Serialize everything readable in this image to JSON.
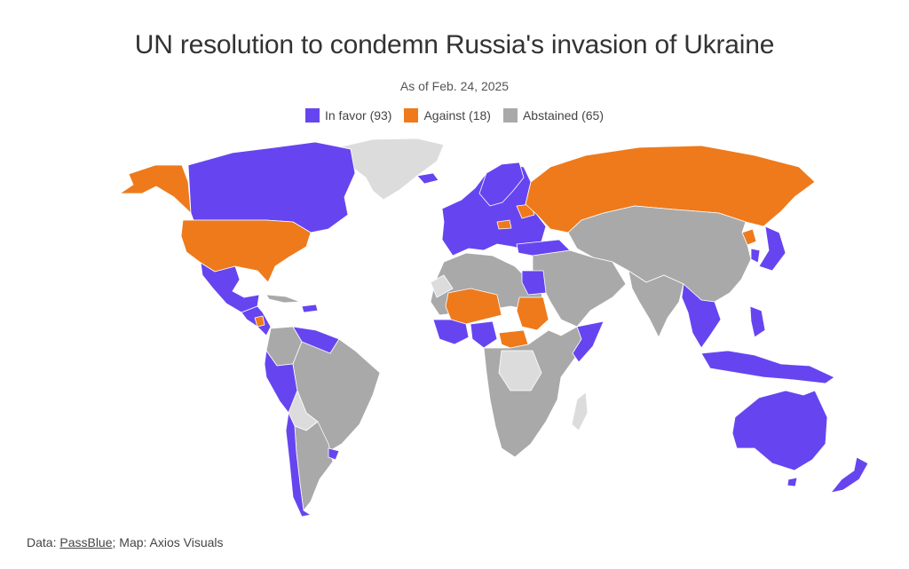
{
  "header": {
    "title": "UN resolution to condemn Russia's invasion of Ukraine",
    "subtitle": "As of Feb. 24, 2025"
  },
  "legend": [
    {
      "label": "In favor (93)",
      "color": "#6645f0"
    },
    {
      "label": "Against (18)",
      "color": "#ee7a1c"
    },
    {
      "label": "Abstained (65)",
      "color": "#a9a9a9"
    }
  ],
  "colors": {
    "in_favor": "#6645f0",
    "against": "#ee7a1c",
    "abstained": "#a9a9a9",
    "no_vote": "#dcdcdc"
  },
  "footer": {
    "prefix": "Data: ",
    "source_link": "PassBlue",
    "suffix": "; Map: Axios Visuals"
  }
}
